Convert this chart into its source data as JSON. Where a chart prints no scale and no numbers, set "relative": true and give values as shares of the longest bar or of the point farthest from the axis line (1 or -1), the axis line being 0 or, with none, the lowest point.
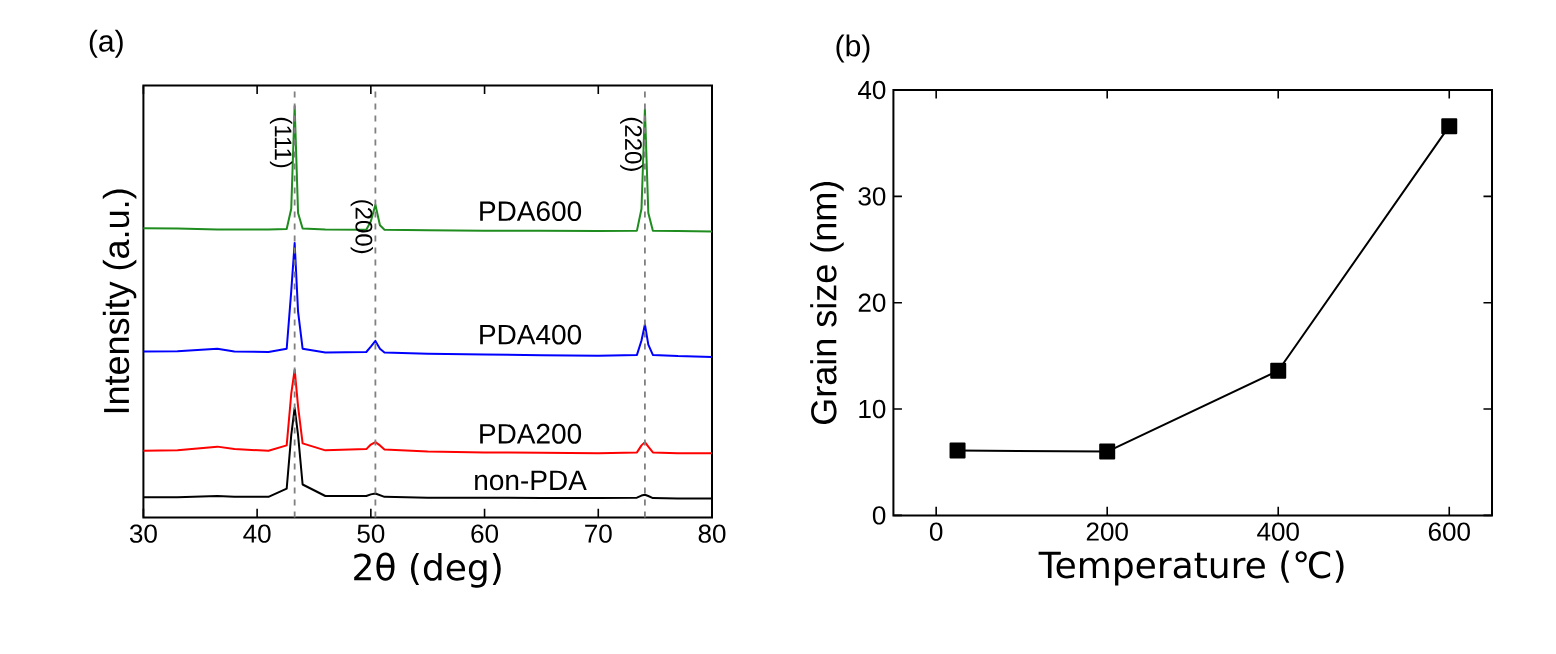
{
  "chart_data": [
    {
      "type": "line",
      "title": "(a)",
      "xlabel": "2θ (deg)",
      "ylabel": "Intensity (a.u.)",
      "relative": true,
      "tick_labels": "x",
      "legend": false,
      "marker": "none",
      "line_style": "solid",
      "xlim": [
        30,
        80
      ],
      "xticks": [
        30,
        40,
        50,
        60,
        70,
        80
      ],
      "x": [
        30,
        33,
        36.5,
        38,
        41,
        42.6,
        43.0,
        43.3,
        43.6,
        44.0,
        46,
        49.6,
        50.0,
        50.4,
        50.8,
        51.2,
        55,
        60,
        65,
        70,
        73.4,
        73.8,
        74.1,
        74.4,
        74.8,
        77,
        80
      ],
      "series": [
        {
          "name": "non-PDA",
          "color": "#000000",
          "values": [
            0.049,
            0.049,
            0.052,
            0.05,
            0.05,
            0.07,
            0.2,
            0.266,
            0.2,
            0.08,
            0.052,
            0.052,
            0.056,
            0.058,
            0.054,
            0.05,
            0.048,
            0.048,
            0.047,
            0.047,
            0.048,
            0.053,
            0.055,
            0.052,
            0.047,
            0.046,
            0.046
          ]
        },
        {
          "name": "PDA200",
          "color": "#ff0000",
          "values": [
            0.162,
            0.163,
            0.172,
            0.166,
            0.162,
            0.175,
            0.3,
            0.359,
            0.27,
            0.18,
            0.163,
            0.166,
            0.177,
            0.183,
            0.175,
            0.165,
            0.16,
            0.158,
            0.157,
            0.156,
            0.158,
            0.175,
            0.183,
            0.172,
            0.158,
            0.156,
            0.156
          ]
        },
        {
          "name": "PDA400",
          "color": "#0000ff",
          "values": [
            0.403,
            0.404,
            0.41,
            0.403,
            0.402,
            0.41,
            0.55,
            0.667,
            0.5,
            0.41,
            0.401,
            0.402,
            0.415,
            0.429,
            0.41,
            0.401,
            0.398,
            0.396,
            0.394,
            0.393,
            0.395,
            0.43,
            0.469,
            0.42,
            0.395,
            0.392,
            0.39
          ]
        },
        {
          "name": "PDA600",
          "color": "#1e8c1e",
          "values": [
            0.703,
            0.702,
            0.7,
            0.7,
            0.7,
            0.701,
            0.75,
            1.0,
            0.74,
            0.702,
            0.7,
            0.699,
            0.72,
            0.76,
            0.71,
            0.699,
            0.698,
            0.697,
            0.697,
            0.696,
            0.697,
            0.75,
            0.992,
            0.74,
            0.697,
            0.696,
            0.695
          ]
        }
      ],
      "ref_lines": [
        {
          "axis": "x",
          "value": 43.3,
          "color": "#808080",
          "line_style": "dashed"
        },
        {
          "axis": "x",
          "value": 50.4,
          "color": "#808080",
          "line_style": "dashed"
        },
        {
          "axis": "x",
          "value": 74.1,
          "color": "#808080",
          "line_style": "dashed"
        }
      ],
      "annotations": [
        {
          "text": "(111)",
          "x": 43.3,
          "y": 1.0
        },
        {
          "text": "(200)",
          "x": 50.4,
          "y": 0.8
        },
        {
          "text": "(220)",
          "x": 74.1,
          "y": 1.0
        }
      ]
    },
    {
      "type": "line",
      "title": "(b)",
      "xlabel": "Temperature (℃)",
      "ylabel": "Grain size (nm)",
      "marker": "square",
      "line_style": "solid",
      "color": "#000000",
      "xlim": [
        -50,
        650
      ],
      "xticks": [
        0,
        200,
        400,
        600
      ],
      "ylim": [
        0,
        40
      ],
      "yticks": [
        0,
        10,
        20,
        30,
        40
      ],
      "x": [
        25,
        200,
        400,
        600
      ],
      "values": [
        6.1,
        6.0,
        13.6,
        36.6
      ]
    }
  ]
}
